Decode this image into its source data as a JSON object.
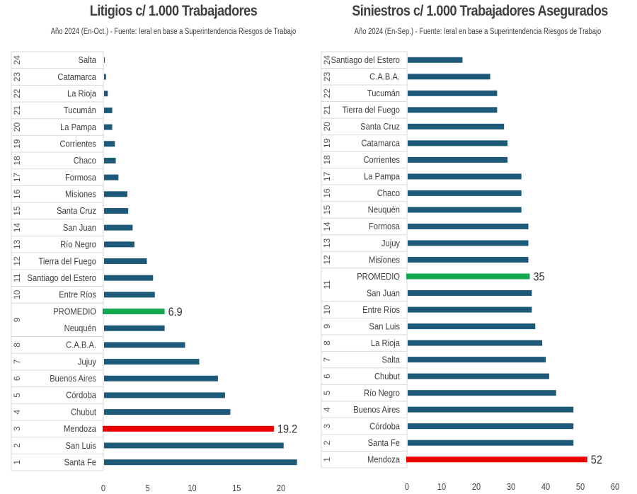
{
  "colors": {
    "bar": "#1d5a7a",
    "promedio": "#11a84e",
    "highlight": "#ee0000",
    "grid": "#d9d9d9"
  },
  "chart_data": [
    {
      "id": "litigios",
      "type": "bar",
      "orientation": "horizontal",
      "title": "Litigios c/ 1.000 Trabajadores",
      "subtitle": "Año 2024 (En-Oct.) - Fuente: Ieral en base a Superintendencia Riesgos de Trabajo",
      "xlabel": "",
      "ylabel": "",
      "xlim": [
        0,
        22
      ],
      "xticks": [
        "0",
        "5",
        "10",
        "15",
        "20"
      ],
      "xtick_values": [
        0,
        5,
        10,
        15,
        20
      ],
      "grid": false,
      "rows": [
        {
          "rank": "24",
          "label": "Salta",
          "value": 0.1,
          "kind": "normal"
        },
        {
          "rank": "23",
          "label": "Catamarca",
          "value": 0.3,
          "kind": "normal"
        },
        {
          "rank": "22",
          "label": "La Rioja",
          "value": 0.5,
          "kind": "normal"
        },
        {
          "rank": "21",
          "label": "Tucumán",
          "value": 1.0,
          "kind": "normal"
        },
        {
          "rank": "20",
          "label": "La Pampa",
          "value": 1.0,
          "kind": "normal"
        },
        {
          "rank": "19",
          "label": "Corrientes",
          "value": 1.3,
          "kind": "normal"
        },
        {
          "rank": "18",
          "label": "Chaco",
          "value": 1.4,
          "kind": "normal"
        },
        {
          "rank": "17",
          "label": "Formosa",
          "value": 1.7,
          "kind": "normal"
        },
        {
          "rank": "16",
          "label": "Misiones",
          "value": 2.7,
          "kind": "normal"
        },
        {
          "rank": "15",
          "label": "Santa Cruz",
          "value": 2.8,
          "kind": "normal"
        },
        {
          "rank": "14",
          "label": "San Juan",
          "value": 3.3,
          "kind": "normal"
        },
        {
          "rank": "13",
          "label": "Río Negro",
          "value": 3.5,
          "kind": "normal"
        },
        {
          "rank": "12",
          "label": "Tierra del Fuego",
          "value": 4.9,
          "kind": "normal"
        },
        {
          "rank": "11",
          "label": "Santiago del Estero",
          "value": 5.6,
          "kind": "normal"
        },
        {
          "rank": "10",
          "label": "Entre Ríos",
          "value": 5.8,
          "kind": "normal"
        },
        {
          "rank": "",
          "label": "PROMEDIO",
          "value": 6.9,
          "kind": "promedio",
          "data_label": "6.9"
        },
        {
          "rank": "9",
          "label": "Neuquén",
          "value": 6.9,
          "kind": "normal"
        },
        {
          "rank": "8",
          "label": "C.A.B.A.",
          "value": 9.2,
          "kind": "normal"
        },
        {
          "rank": "7",
          "label": "Jujuy",
          "value": 10.8,
          "kind": "normal"
        },
        {
          "rank": "6",
          "label": "Buenos Aires",
          "value": 12.9,
          "kind": "normal"
        },
        {
          "rank": "5",
          "label": "Córdoba",
          "value": 13.7,
          "kind": "normal"
        },
        {
          "rank": "4",
          "label": "Chubut",
          "value": 14.3,
          "kind": "normal"
        },
        {
          "rank": "3",
          "label": "Mendoza",
          "value": 19.2,
          "kind": "highlight",
          "data_label": "19.2"
        },
        {
          "rank": "2",
          "label": "San Luis",
          "value": 20.3,
          "kind": "normal"
        },
        {
          "rank": "1",
          "label": "Santa Fe",
          "value": 21.8,
          "kind": "normal"
        }
      ]
    },
    {
      "id": "siniestros",
      "type": "bar",
      "orientation": "horizontal",
      "title": "Siniestros c/ 1.000 Trabajadores Asegurados",
      "subtitle": "Año 2024 (En-Sep.) - Fuente: Ieral en base a Superintendencia Riesgos de Trabajo",
      "xlabel": "",
      "ylabel": "",
      "xlim": [
        0,
        60
      ],
      "xticks": [
        "0",
        "10",
        "20",
        "30",
        "40",
        "50",
        "60"
      ],
      "xtick_values": [
        0,
        10,
        20,
        30,
        40,
        50,
        60
      ],
      "grid": false,
      "rows": [
        {
          "rank": "24",
          "label": "Santiago del Estero",
          "value": 16,
          "kind": "normal"
        },
        {
          "rank": "23",
          "label": "C.A.B.A.",
          "value": 24,
          "kind": "normal"
        },
        {
          "rank": "22",
          "label": "Tucumán",
          "value": 26,
          "kind": "normal"
        },
        {
          "rank": "21",
          "label": "Tierra del Fuego",
          "value": 26,
          "kind": "normal"
        },
        {
          "rank": "20",
          "label": "Santa Cruz",
          "value": 28,
          "kind": "normal"
        },
        {
          "rank": "19",
          "label": "Catamarca",
          "value": 29,
          "kind": "normal"
        },
        {
          "rank": "18",
          "label": "Corrientes",
          "value": 29,
          "kind": "normal"
        },
        {
          "rank": "17",
          "label": "La Pampa",
          "value": 33,
          "kind": "normal"
        },
        {
          "rank": "16",
          "label": "Chaco",
          "value": 33,
          "kind": "normal"
        },
        {
          "rank": "15",
          "label": "Neuquén",
          "value": 33,
          "kind": "normal"
        },
        {
          "rank": "14",
          "label": "Formosa",
          "value": 35,
          "kind": "normal"
        },
        {
          "rank": "13",
          "label": "Jujuy",
          "value": 35,
          "kind": "normal"
        },
        {
          "rank": "12",
          "label": "Misiones",
          "value": 35,
          "kind": "normal"
        },
        {
          "rank": "",
          "label": "PROMEDIO",
          "value": 35.4,
          "kind": "promedio",
          "data_label": "35"
        },
        {
          "rank": "11",
          "label": "San Juan",
          "value": 36,
          "kind": "normal"
        },
        {
          "rank": "10",
          "label": "Entre Ríos",
          "value": 36,
          "kind": "normal"
        },
        {
          "rank": "9",
          "label": "San Luis",
          "value": 37,
          "kind": "normal"
        },
        {
          "rank": "8",
          "label": "La Rioja",
          "value": 39,
          "kind": "normal"
        },
        {
          "rank": "7",
          "label": "Salta",
          "value": 40,
          "kind": "normal"
        },
        {
          "rank": "6",
          "label": "Chubut",
          "value": 41,
          "kind": "normal"
        },
        {
          "rank": "5",
          "label": "Río Negro",
          "value": 43,
          "kind": "normal"
        },
        {
          "rank": "4",
          "label": "Buenos Aires",
          "value": 48,
          "kind": "normal"
        },
        {
          "rank": "3",
          "label": "Córdoba",
          "value": 48,
          "kind": "normal"
        },
        {
          "rank": "2",
          "label": "Santa Fe",
          "value": 48,
          "kind": "normal"
        },
        {
          "rank": "1",
          "label": "Mendoza",
          "value": 52,
          "kind": "highlight",
          "data_label": "52"
        }
      ]
    }
  ]
}
